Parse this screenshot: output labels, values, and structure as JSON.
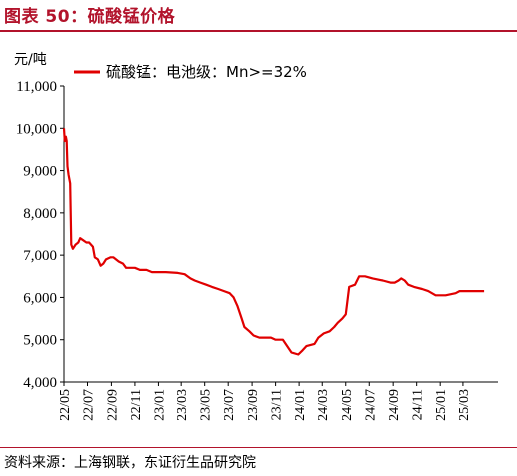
{
  "header": {
    "title": "图表 50：硫酸锰价格"
  },
  "footer": {
    "source": "资料来源：上海钢联，东证衍生品研究院"
  },
  "colors": {
    "accent": "#b2132b",
    "series": "#e00000"
  },
  "chart_data": {
    "type": "line",
    "unit": "元/吨",
    "ylim": [
      4000,
      11000
    ],
    "yticks": [
      "4,000",
      "5,000",
      "6,000",
      "7,000",
      "8,000",
      "9,000",
      "10,000",
      "11,000"
    ],
    "ytick_values": [
      4000,
      5000,
      6000,
      7000,
      8000,
      9000,
      10000,
      11000
    ],
    "xlim": [
      "2022-05-01",
      "2025-05-31"
    ],
    "xticks": [
      "22/05",
      "22/07",
      "22/09",
      "22/11",
      "23/01",
      "23/03",
      "23/05",
      "23/07",
      "23/09",
      "23/11",
      "24/01",
      "24/03",
      "24/05",
      "24/07",
      "24/09",
      "24/11",
      "25/01",
      "25/03"
    ],
    "xtick_dates": [
      "2022-05-01",
      "2022-07-01",
      "2022-09-01",
      "2022-11-01",
      "2023-01-01",
      "2023-03-01",
      "2023-05-01",
      "2023-07-01",
      "2023-09-01",
      "2023-11-01",
      "2024-01-01",
      "2024-03-01",
      "2024-05-01",
      "2024-07-01",
      "2024-09-01",
      "2024-11-01",
      "2025-01-01",
      "2025-03-01"
    ],
    "grid": false,
    "legend_position": "top-left",
    "series": [
      {
        "name": "硫酸锰：电池级：Mn>=32%",
        "points": [
          [
            "2022-05-01",
            10000
          ],
          [
            "2022-05-03",
            9700
          ],
          [
            "2022-05-06",
            9800
          ],
          [
            "2022-05-08",
            9700
          ],
          [
            "2022-05-10",
            9100
          ],
          [
            "2022-05-13",
            8900
          ],
          [
            "2022-05-17",
            8700
          ],
          [
            "2022-05-20",
            7250
          ],
          [
            "2022-05-24",
            7150
          ],
          [
            "2022-05-31",
            7250
          ],
          [
            "2022-06-07",
            7300
          ],
          [
            "2022-06-12",
            7400
          ],
          [
            "2022-06-20",
            7350
          ],
          [
            "2022-06-28",
            7300
          ],
          [
            "2022-07-05",
            7300
          ],
          [
            "2022-07-15",
            7200
          ],
          [
            "2022-07-20",
            6950
          ],
          [
            "2022-07-28",
            6900
          ],
          [
            "2022-08-04",
            6750
          ],
          [
            "2022-08-11",
            6800
          ],
          [
            "2022-08-18",
            6900
          ],
          [
            "2022-08-30",
            6950
          ],
          [
            "2022-09-06",
            6950
          ],
          [
            "2022-09-13",
            6900
          ],
          [
            "2022-09-20",
            6850
          ],
          [
            "2022-10-01",
            6800
          ],
          [
            "2022-10-09",
            6700
          ],
          [
            "2022-11-01",
            6700
          ],
          [
            "2022-11-14",
            6650
          ],
          [
            "2022-12-01",
            6650
          ],
          [
            "2022-12-15",
            6600
          ],
          [
            "2023-01-20",
            6600
          ],
          [
            "2023-02-20",
            6580
          ],
          [
            "2023-03-10",
            6550
          ],
          [
            "2023-03-25",
            6450
          ],
          [
            "2023-04-05",
            6400
          ],
          [
            "2023-04-20",
            6350
          ],
          [
            "2023-05-05",
            6300
          ],
          [
            "2023-05-20",
            6250
          ],
          [
            "2023-06-05",
            6200
          ],
          [
            "2023-06-20",
            6150
          ],
          [
            "2023-07-05",
            6100
          ],
          [
            "2023-07-15",
            6000
          ],
          [
            "2023-07-25",
            5800
          ],
          [
            "2023-08-05",
            5500
          ],
          [
            "2023-08-12",
            5300
          ],
          [
            "2023-08-25",
            5200
          ],
          [
            "2023-09-05",
            5100
          ],
          [
            "2023-09-20",
            5050
          ],
          [
            "2023-10-20",
            5050
          ],
          [
            "2023-11-01",
            5000
          ],
          [
            "2023-11-20",
            5000
          ],
          [
            "2023-12-01",
            4850
          ],
          [
            "2023-12-12",
            4700
          ],
          [
            "2023-12-30",
            4650
          ],
          [
            "2024-01-10",
            4750
          ],
          [
            "2024-01-20",
            4850
          ],
          [
            "2024-02-10",
            4900
          ],
          [
            "2024-02-20",
            5050
          ],
          [
            "2024-03-05",
            5150
          ],
          [
            "2024-03-20",
            5200
          ],
          [
            "2024-04-01",
            5300
          ],
          [
            "2024-04-10",
            5400
          ],
          [
            "2024-04-22",
            5500
          ],
          [
            "2024-05-01",
            5600
          ],
          [
            "2024-05-10",
            6250
          ],
          [
            "2024-05-25",
            6300
          ],
          [
            "2024-06-05",
            6500
          ],
          [
            "2024-06-20",
            6500
          ],
          [
            "2024-07-10",
            6450
          ],
          [
            "2024-08-05",
            6400
          ],
          [
            "2024-08-25",
            6350
          ],
          [
            "2024-09-05",
            6350
          ],
          [
            "2024-09-15",
            6400
          ],
          [
            "2024-09-22",
            6450
          ],
          [
            "2024-10-01",
            6400
          ],
          [
            "2024-10-10",
            6300
          ],
          [
            "2024-10-25",
            6250
          ],
          [
            "2024-11-15",
            6200
          ],
          [
            "2024-12-01",
            6150
          ],
          [
            "2024-12-20",
            6050
          ],
          [
            "2025-01-15",
            6050
          ],
          [
            "2025-02-10",
            6100
          ],
          [
            "2025-02-20",
            6150
          ],
          [
            "2025-03-10",
            6150
          ],
          [
            "2025-04-25",
            6150
          ]
        ]
      }
    ]
  }
}
